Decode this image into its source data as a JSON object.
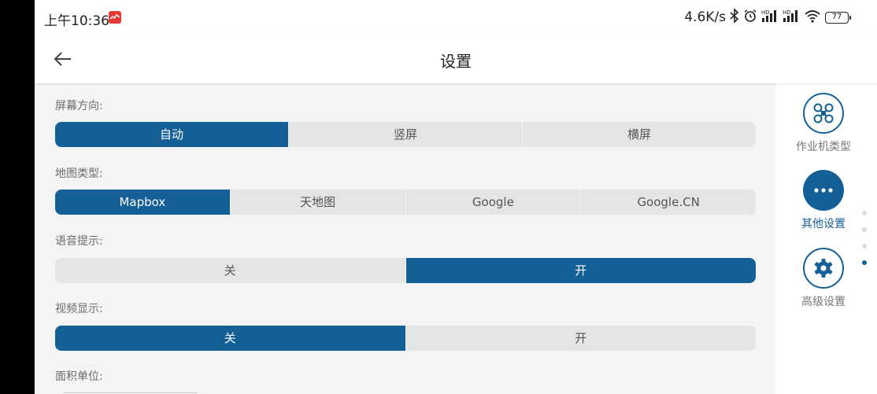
{
  "status_bar": {
    "time": "上午10:36",
    "net_speed": "4.6K/s",
    "battery": "77"
  },
  "header": {
    "title": "设置"
  },
  "settings": {
    "screen_orientation": {
      "label": "屏幕方向:",
      "options": [
        "自动",
        "竖屏",
        "横屏"
      ],
      "selected": "自动"
    },
    "map_type": {
      "label": "地图类型:",
      "options": [
        "Mapbox",
        "天地图",
        "Google",
        "Google.CN"
      ],
      "selected": "Mapbox"
    },
    "voice_prompt": {
      "label": "语音提示:",
      "options": [
        "关",
        "开"
      ],
      "selected": "开"
    },
    "video_display": {
      "label": "视频显示:",
      "options": [
        "关",
        "开"
      ],
      "selected": "关"
    },
    "area_unit": {
      "label": "面积单位:"
    }
  },
  "sidebar": {
    "items": [
      {
        "label": "作业机类型",
        "icon": "drone-icon",
        "active": false
      },
      {
        "label": "其他设置",
        "icon": "more-dots-icon",
        "active": true
      },
      {
        "label": "高级设置",
        "icon": "gear-icon",
        "active": false
      }
    ],
    "page_indicator": {
      "count": 4,
      "active_index": 3
    }
  },
  "colors": {
    "accent": "#145f96",
    "segment_bg": "#e5e5e5",
    "page_bg": "#f4f4f4"
  }
}
